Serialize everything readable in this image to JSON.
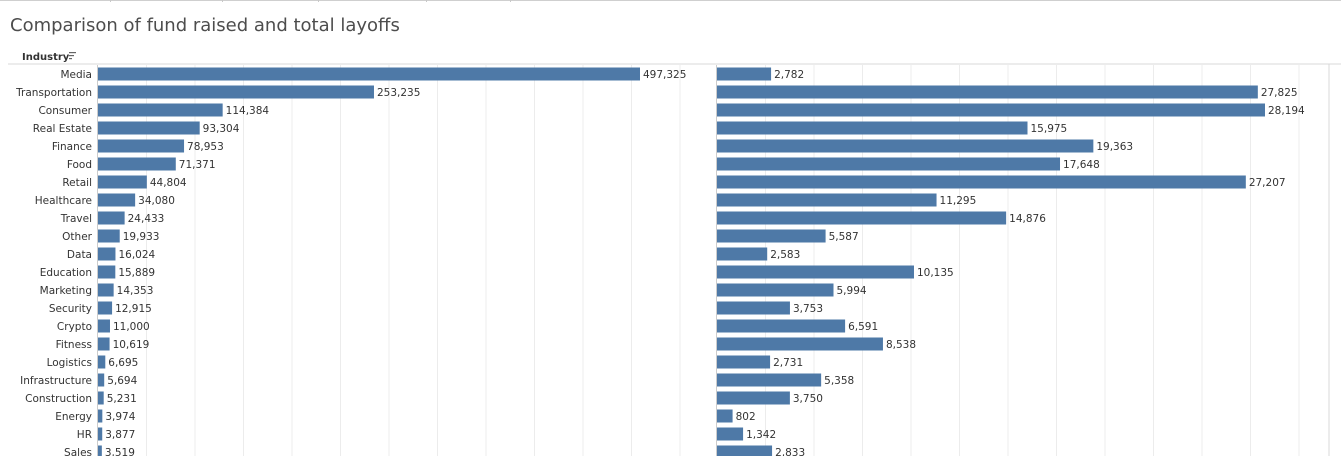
{
  "page": {
    "title": "Comparison of fund raised and total layoffs"
  },
  "chart_data": {
    "type": "bar",
    "orientation": "horizontal",
    "row_header": "Industry",
    "categories": [
      "Media",
      "Transportation",
      "Consumer",
      "Real Estate",
      "Finance",
      "Food",
      "Retail",
      "Healthcare",
      "Travel",
      "Other",
      "Data",
      "Education",
      "Marketing",
      "Security",
      "Crypto",
      "Fitness",
      "Logistics",
      "Infrastructure",
      "Construction",
      "Energy",
      "HR",
      "Sales"
    ],
    "series": [
      {
        "values": [
          497325,
          253235,
          114384,
          93304,
          78953,
          71371,
          44804,
          34080,
          24433,
          19933,
          16024,
          15889,
          14353,
          12915,
          11000,
          10619,
          6695,
          5694,
          5231,
          3974,
          3877,
          3519
        ],
        "value_labels": [
          "497,325",
          "253,235",
          "114,384",
          "93,304",
          "78,953",
          "71,371",
          "44,804",
          "34,080",
          "24,433",
          "19,933",
          "16,024",
          "15,889",
          "14,353",
          "12,915",
          "11,000",
          "10,619",
          "6,695",
          "5,694",
          "5,231",
          "3,974",
          "3,877",
          "3,519"
        ]
      },
      {
        "values": [
          2782,
          27825,
          28194,
          15975,
          19363,
          17648,
          27207,
          11295,
          14876,
          5587,
          2583,
          10135,
          5994,
          3753,
          6591,
          8538,
          2731,
          5358,
          3750,
          802,
          1342,
          2833
        ],
        "value_labels": [
          "2,782",
          "27,825",
          "28,194",
          "15,975",
          "19,363",
          "17,648",
          "27,207",
          "11,295",
          "14,876",
          "5,587",
          "2,583",
          "10,135",
          "5,994",
          "3,753",
          "6,591",
          "8,538",
          "2,731",
          "5,358",
          "3,750",
          "802",
          "1,342",
          "2,833"
        ]
      }
    ],
    "xlim": [
      [
        0,
        640000
      ],
      [
        0,
        32000
      ]
    ],
    "grid": true,
    "sort_icon": "sort-descending-icon",
    "colors": {
      "bar": "#4e79a7",
      "grid": "#ececec",
      "axis": "#cccccc",
      "text": "#333333"
    }
  }
}
